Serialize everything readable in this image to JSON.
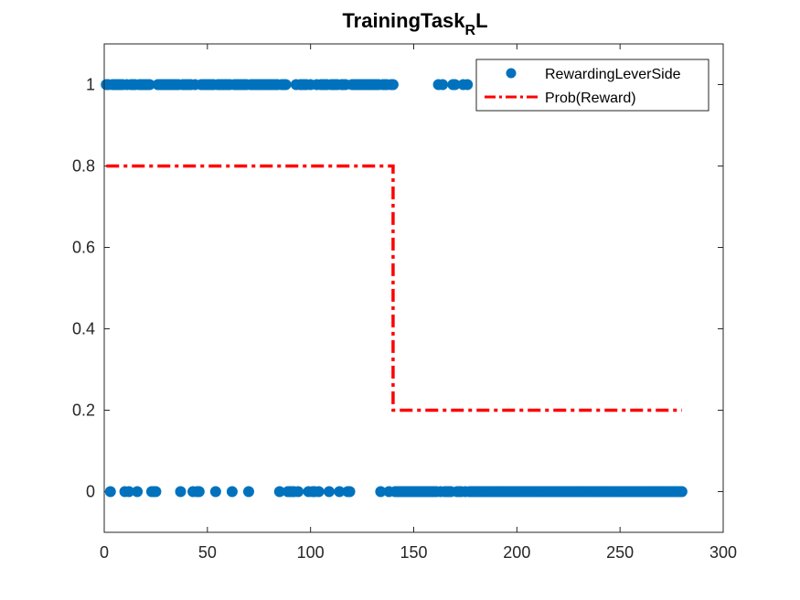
{
  "chart_data": {
    "type": "scatter",
    "title": {
      "main": "TrainingTask",
      "subscript": "R",
      "suffix": "L"
    },
    "xlabel": "",
    "ylabel": "",
    "xlim": [
      0,
      300
    ],
    "ylim": [
      -0.1,
      1.1
    ],
    "xticks": [
      0,
      50,
      100,
      150,
      200,
      250,
      300
    ],
    "yticks": [
      0,
      0.2,
      0.4,
      0.6,
      0.8,
      1
    ],
    "xtick_labels": [
      "0",
      "50",
      "100",
      "150",
      "200",
      "250",
      "300"
    ],
    "ytick_labels": [
      "0",
      "0.2",
      "0.4",
      "0.6",
      "0.8",
      "1"
    ],
    "grid": false,
    "legend_position": "top-right",
    "series": [
      {
        "name": "RewardingLeverSide",
        "kind": "scatter",
        "marker": "circle",
        "color": "#0072BD",
        "points": [
          [
            1,
            1
          ],
          [
            2,
            1
          ],
          [
            3,
            0
          ],
          [
            4,
            1
          ],
          [
            5,
            1
          ],
          [
            6,
            1
          ],
          [
            7,
            1
          ],
          [
            8,
            1
          ],
          [
            9,
            1
          ],
          [
            10,
            0
          ],
          [
            11,
            1
          ],
          [
            12,
            0
          ],
          [
            13,
            1
          ],
          [
            14,
            1
          ],
          [
            15,
            1
          ],
          [
            16,
            0
          ],
          [
            17,
            1
          ],
          [
            18,
            1
          ],
          [
            19,
            1
          ],
          [
            20,
            1
          ],
          [
            21,
            1
          ],
          [
            22,
            1
          ],
          [
            23,
            0
          ],
          [
            24,
            0
          ],
          [
            25,
            0
          ],
          [
            26,
            1
          ],
          [
            27,
            1
          ],
          [
            28,
            1
          ],
          [
            29,
            1
          ],
          [
            30,
            1
          ],
          [
            31,
            1
          ],
          [
            32,
            1
          ],
          [
            33,
            1
          ],
          [
            34,
            1
          ],
          [
            35,
            1
          ],
          [
            36,
            1
          ],
          [
            37,
            0
          ],
          [
            38,
            1
          ],
          [
            39,
            1
          ],
          [
            40,
            1
          ],
          [
            41,
            1
          ],
          [
            42,
            1
          ],
          [
            43,
            0
          ],
          [
            44,
            1
          ],
          [
            45,
            0
          ],
          [
            46,
            0
          ],
          [
            47,
            1
          ],
          [
            48,
            1
          ],
          [
            49,
            1
          ],
          [
            50,
            1
          ],
          [
            51,
            1
          ],
          [
            52,
            1
          ],
          [
            53,
            1
          ],
          [
            54,
            0
          ],
          [
            55,
            1
          ],
          [
            56,
            1
          ],
          [
            57,
            1
          ],
          [
            58,
            1
          ],
          [
            59,
            1
          ],
          [
            60,
            1
          ],
          [
            61,
            1
          ],
          [
            62,
            0
          ],
          [
            63,
            1
          ],
          [
            64,
            1
          ],
          [
            65,
            1
          ],
          [
            66,
            1
          ],
          [
            67,
            1
          ],
          [
            68,
            1
          ],
          [
            69,
            1
          ],
          [
            70,
            0
          ],
          [
            71,
            1
          ],
          [
            72,
            1
          ],
          [
            73,
            1
          ],
          [
            74,
            1
          ],
          [
            75,
            1
          ],
          [
            76,
            1
          ],
          [
            77,
            1
          ],
          [
            78,
            1
          ],
          [
            79,
            1
          ],
          [
            80,
            1
          ],
          [
            81,
            1
          ],
          [
            82,
            1
          ],
          [
            83,
            1
          ],
          [
            84,
            1
          ],
          [
            85,
            0
          ],
          [
            86,
            1
          ],
          [
            87,
            1
          ],
          [
            88,
            1
          ],
          [
            89,
            0
          ],
          [
            90,
            0
          ],
          [
            91,
            0
          ],
          [
            92,
            0
          ],
          [
            93,
            1
          ],
          [
            94,
            0
          ],
          [
            95,
            1
          ],
          [
            96,
            1
          ],
          [
            97,
            1
          ],
          [
            98,
            1
          ],
          [
            99,
            0
          ],
          [
            100,
            1
          ],
          [
            101,
            0
          ],
          [
            102,
            0
          ],
          [
            103,
            1
          ],
          [
            104,
            0
          ],
          [
            105,
            1
          ],
          [
            106,
            1
          ],
          [
            107,
            1
          ],
          [
            108,
            1
          ],
          [
            109,
            0
          ],
          [
            110,
            1
          ],
          [
            111,
            1
          ],
          [
            112,
            1
          ],
          [
            113,
            1
          ],
          [
            114,
            0
          ],
          [
            115,
            1
          ],
          [
            116,
            1
          ],
          [
            117,
            1
          ],
          [
            118,
            0
          ],
          [
            119,
            0
          ],
          [
            120,
            1
          ],
          [
            121,
            1
          ],
          [
            122,
            1
          ],
          [
            123,
            1
          ],
          [
            124,
            1
          ],
          [
            125,
            1
          ],
          [
            126,
            1
          ],
          [
            127,
            1
          ],
          [
            128,
            1
          ],
          [
            129,
            1
          ],
          [
            130,
            1
          ],
          [
            131,
            1
          ],
          [
            132,
            1
          ],
          [
            133,
            1
          ],
          [
            134,
            0
          ],
          [
            135,
            1
          ],
          [
            136,
            1
          ],
          [
            137,
            1
          ],
          [
            138,
            0
          ],
          [
            139,
            1
          ],
          [
            140,
            1
          ],
          [
            141,
            0
          ],
          [
            142,
            0
          ],
          [
            143,
            0
          ],
          [
            144,
            0
          ],
          [
            145,
            0
          ],
          [
            146,
            0
          ],
          [
            147,
            0
          ],
          [
            148,
            0
          ],
          [
            149,
            0
          ],
          [
            150,
            0
          ],
          [
            151,
            0
          ],
          [
            152,
            0
          ],
          [
            153,
            0
          ],
          [
            154,
            0
          ],
          [
            155,
            0
          ],
          [
            156,
            0
          ],
          [
            157,
            0
          ],
          [
            158,
            0
          ],
          [
            159,
            0
          ],
          [
            160,
            0
          ],
          [
            161,
            0
          ],
          [
            162,
            1
          ],
          [
            163,
            0
          ],
          [
            164,
            1
          ],
          [
            165,
            0
          ],
          [
            166,
            0
          ],
          [
            167,
            0
          ],
          [
            168,
            0
          ],
          [
            169,
            1
          ],
          [
            170,
            1
          ],
          [
            171,
            0
          ],
          [
            172,
            0
          ],
          [
            173,
            0
          ],
          [
            174,
            1
          ],
          [
            175,
            0
          ],
          [
            176,
            1
          ],
          [
            177,
            0
          ],
          [
            178,
            0
          ],
          [
            179,
            0
          ],
          [
            180,
            0
          ],
          [
            181,
            0
          ],
          [
            182,
            0
          ],
          [
            183,
            0
          ],
          [
            184,
            0
          ],
          [
            185,
            0
          ],
          [
            186,
            0
          ],
          [
            187,
            0
          ],
          [
            188,
            0
          ],
          [
            189,
            0
          ],
          [
            190,
            0
          ],
          [
            191,
            0
          ],
          [
            192,
            0
          ],
          [
            193,
            0
          ],
          [
            194,
            0
          ],
          [
            195,
            0
          ],
          [
            196,
            0
          ],
          [
            197,
            0
          ],
          [
            198,
            0
          ],
          [
            199,
            0
          ],
          [
            200,
            0
          ],
          [
            201,
            0
          ],
          [
            202,
            0
          ],
          [
            203,
            0
          ],
          [
            204,
            0
          ],
          [
            205,
            0
          ],
          [
            206,
            0
          ],
          [
            207,
            0
          ],
          [
            208,
            0
          ],
          [
            209,
            0
          ],
          [
            210,
            0
          ],
          [
            211,
            0
          ],
          [
            212,
            0
          ],
          [
            213,
            0
          ],
          [
            214,
            0
          ],
          [
            215,
            0
          ],
          [
            216,
            0
          ],
          [
            217,
            0
          ],
          [
            218,
            0
          ],
          [
            219,
            0
          ],
          [
            220,
            0
          ],
          [
            221,
            0
          ],
          [
            222,
            0
          ],
          [
            223,
            0
          ],
          [
            224,
            0
          ],
          [
            225,
            0
          ],
          [
            226,
            0
          ],
          [
            227,
            0
          ],
          [
            228,
            0
          ],
          [
            229,
            0
          ],
          [
            230,
            0
          ],
          [
            231,
            0
          ],
          [
            232,
            0
          ],
          [
            233,
            0
          ],
          [
            234,
            0
          ],
          [
            235,
            0
          ],
          [
            236,
            0
          ],
          [
            237,
            0
          ],
          [
            238,
            0
          ],
          [
            239,
            0
          ],
          [
            240,
            0
          ],
          [
            241,
            0
          ],
          [
            242,
            0
          ],
          [
            243,
            0
          ],
          [
            244,
            0
          ],
          [
            245,
            0
          ],
          [
            246,
            0
          ],
          [
            247,
            0
          ],
          [
            248,
            0
          ],
          [
            249,
            0
          ],
          [
            250,
            0
          ],
          [
            251,
            0
          ],
          [
            252,
            0
          ],
          [
            253,
            0
          ],
          [
            254,
            0
          ],
          [
            255,
            0
          ],
          [
            256,
            0
          ],
          [
            257,
            0
          ],
          [
            258,
            0
          ],
          [
            259,
            0
          ],
          [
            260,
            0
          ],
          [
            261,
            0
          ],
          [
            262,
            0
          ],
          [
            263,
            0
          ],
          [
            264,
            0
          ],
          [
            265,
            0
          ],
          [
            266,
            0
          ],
          [
            267,
            0
          ],
          [
            268,
            0
          ],
          [
            269,
            0
          ],
          [
            270,
            0
          ],
          [
            271,
            0
          ],
          [
            272,
            0
          ],
          [
            273,
            0
          ],
          [
            274,
            0
          ],
          [
            275,
            0
          ],
          [
            276,
            0
          ],
          [
            277,
            0
          ],
          [
            278,
            0
          ],
          [
            279,
            0
          ],
          [
            280,
            0
          ]
        ]
      },
      {
        "name": "Prob(Reward)",
        "kind": "line",
        "style": "dash-dot",
        "color": "#FF0000",
        "points": [
          [
            1,
            0.8
          ],
          [
            140,
            0.8
          ],
          [
            140,
            0.2
          ],
          [
            280,
            0.2
          ]
        ]
      }
    ]
  }
}
